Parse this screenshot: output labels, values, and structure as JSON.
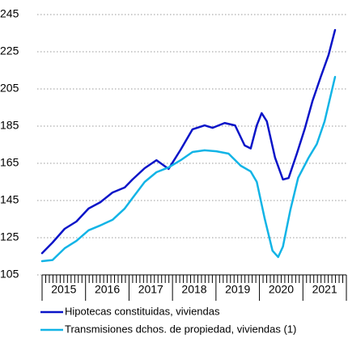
{
  "chart_data": {
    "type": "line",
    "categories": [
      "2015",
      "2016",
      "2017",
      "2018",
      "2019",
      "2020",
      "2021"
    ],
    "xlim": [
      2015,
      2022
    ],
    "ylim": [
      105,
      245
    ],
    "yticks": [
      105,
      125,
      145,
      165,
      185,
      205,
      225,
      245
    ],
    "grid": true,
    "legend": "bottom",
    "series": [
      {
        "name": "Hipotecas constituidas, viviendas",
        "color": "#0a14c8",
        "x": [
          2015.0,
          2015.24,
          2015.52,
          2015.79,
          2016.07,
          2016.34,
          2016.62,
          2016.9,
          2017.08,
          2017.36,
          2017.63,
          2017.91,
          2018.19,
          2018.46,
          2018.74,
          2018.92,
          2019.2,
          2019.44,
          2019.66,
          2019.8,
          2019.94,
          2020.05,
          2020.17,
          2020.36,
          2020.54,
          2020.67,
          2020.86,
          2021.04,
          2021.22,
          2021.41,
          2021.59,
          2021.74
        ],
        "values": [
          116.7,
          122.4,
          129.8,
          133.7,
          140.7,
          144.1,
          149.3,
          152,
          156.3,
          162.4,
          166.7,
          162,
          172.4,
          183.3,
          185.4,
          184.1,
          186.7,
          185.4,
          174.6,
          173,
          185.4,
          192,
          187.6,
          168,
          156.3,
          157.1,
          170.2,
          183.3,
          198.5,
          211.5,
          223.3,
          236.7
        ]
      },
      {
        "name": "Transmisiones dchos. de propiedad, viviendas (1)",
        "color": "#12b4e6",
        "x": [
          2015.0,
          2015.24,
          2015.52,
          2015.79,
          2016.07,
          2016.34,
          2016.62,
          2016.9,
          2017.08,
          2017.36,
          2017.63,
          2017.91,
          2018.19,
          2018.46,
          2018.74,
          2019.01,
          2019.29,
          2019.57,
          2019.8,
          2019.94,
          2020.12,
          2020.3,
          2020.43,
          2020.54,
          2020.71,
          2020.89,
          2021.13,
          2021.32,
          2021.5,
          2021.74
        ],
        "values": [
          112.4,
          113,
          119.3,
          123.3,
          129,
          131.6,
          134.6,
          140.7,
          146.3,
          155,
          160.2,
          162.8,
          166.7,
          171.1,
          172,
          171.5,
          170.2,
          163.7,
          160.6,
          155,
          135.4,
          118,
          114.6,
          120.2,
          139.8,
          157.2,
          168,
          175.4,
          187.6,
          211.5
        ]
      }
    ]
  }
}
